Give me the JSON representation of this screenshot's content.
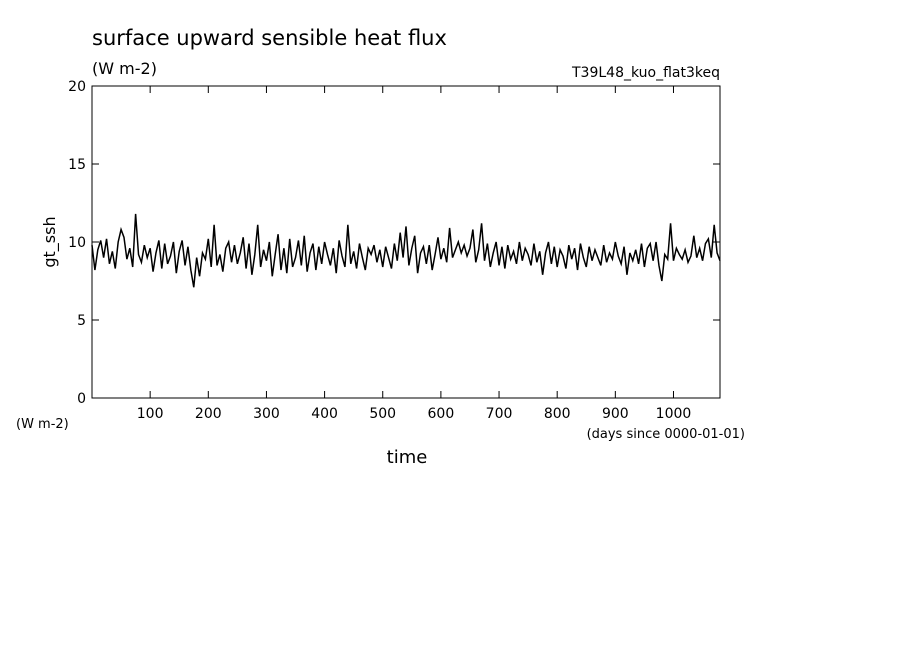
{
  "chart_data": {
    "type": "line",
    "title": "surface upward sensible heat flux",
    "subtitle": "(W m-2)",
    "annotation": "T39L48_kuo_flat3keq",
    "ylabel": "gt_ssh",
    "yunit": "(W m-2)",
    "xlabel": "time",
    "xunit": "(days since 0000-01-01)",
    "color": "#000000",
    "xlim": [
      0,
      1080
    ],
    "ylim": [
      0,
      20
    ],
    "xticks": [
      100,
      200,
      300,
      400,
      500,
      600,
      700,
      800,
      900,
      1000
    ],
    "yticks": [
      0,
      5,
      10,
      15,
      20
    ],
    "x": [
      0,
      5,
      10,
      15,
      20,
      25,
      30,
      35,
      40,
      45,
      50,
      55,
      60,
      65,
      70,
      75,
      80,
      85,
      90,
      95,
      100,
      105,
      110,
      115,
      120,
      125,
      130,
      135,
      140,
      145,
      150,
      155,
      160,
      165,
      170,
      175,
      180,
      185,
      190,
      195,
      200,
      205,
      210,
      215,
      220,
      225,
      230,
      235,
      240,
      245,
      250,
      255,
      260,
      265,
      270,
      275,
      280,
      285,
      290,
      295,
      300,
      305,
      310,
      315,
      320,
      325,
      330,
      335,
      340,
      345,
      350,
      355,
      360,
      365,
      370,
      375,
      380,
      385,
      390,
      395,
      400,
      405,
      410,
      415,
      420,
      425,
      430,
      435,
      440,
      445,
      450,
      455,
      460,
      465,
      470,
      475,
      480,
      485,
      490,
      495,
      500,
      505,
      510,
      515,
      520,
      525,
      530,
      535,
      540,
      545,
      550,
      555,
      560,
      565,
      570,
      575,
      580,
      585,
      590,
      595,
      600,
      605,
      610,
      615,
      620,
      625,
      630,
      635,
      640,
      645,
      650,
      655,
      660,
      665,
      670,
      675,
      680,
      685,
      690,
      695,
      700,
      705,
      710,
      715,
      720,
      725,
      730,
      735,
      740,
      745,
      750,
      755,
      760,
      765,
      770,
      775,
      780,
      785,
      790,
      795,
      800,
      805,
      810,
      815,
      820,
      825,
      830,
      835,
      840,
      845,
      850,
      855,
      860,
      865,
      870,
      875,
      880,
      885,
      890,
      895,
      900,
      905,
      910,
      915,
      920,
      925,
      930,
      935,
      940,
      945,
      950,
      955,
      960,
      965,
      970,
      975,
      980,
      985,
      990,
      995,
      1000,
      1005,
      1010,
      1015,
      1020,
      1025,
      1030,
      1035,
      1040,
      1045,
      1050,
      1055,
      1060,
      1065,
      1070,
      1075,
      1080
    ],
    "values": [
      9.8,
      8.2,
      9.5,
      10.1,
      9.0,
      10.2,
      8.6,
      9.4,
      8.3,
      10.0,
      10.8,
      10.3,
      8.9,
      9.6,
      8.4,
      11.8,
      9.2,
      8.7,
      9.8,
      9.0,
      9.6,
      8.1,
      9.3,
      10.1,
      8.3,
      9.9,
      8.6,
      9.1,
      10.0,
      8.0,
      9.4,
      10.1,
      8.5,
      9.7,
      8.2,
      7.1,
      9.0,
      7.8,
      9.3,
      8.9,
      10.2,
      8.4,
      11.1,
      8.5,
      9.2,
      8.1,
      9.6,
      10.0,
      8.7,
      9.8,
      8.6,
      9.3,
      10.3,
      8.3,
      9.9,
      7.9,
      9.2,
      11.1,
      8.4,
      9.5,
      8.8,
      10.0,
      7.8,
      9.2,
      10.5,
      8.2,
      9.6,
      8.0,
      10.2,
      8.4,
      9.0,
      10.1,
      8.5,
      10.4,
      8.1,
      9.3,
      9.9,
      8.2,
      9.7,
      8.6,
      10.0,
      9.2,
      8.5,
      9.6,
      8.0,
      10.1,
      9.1,
      8.4,
      11.1,
      8.6,
      9.4,
      8.3,
      9.9,
      9.0,
      8.2,
      9.6,
      9.2,
      9.8,
      8.7,
      9.5,
      8.4,
      9.7,
      9.0,
      8.3,
      9.9,
      8.8,
      10.6,
      9.0,
      11.0,
      8.5,
      9.6,
      10.4,
      8.0,
      9.3,
      9.7,
      8.6,
      9.8,
      8.2,
      9.2,
      10.3,
      8.9,
      9.6,
      8.7,
      10.9,
      9.0,
      9.5,
      10.0,
      9.3,
      9.8,
      9.1,
      9.6,
      10.8,
      8.7,
      9.5,
      11.2,
      8.8,
      9.9,
      8.4,
      9.3,
      10.0,
      8.5,
      9.7,
      8.3,
      9.8,
      8.9,
      9.4,
      8.6,
      10.0,
      8.8,
      9.6,
      9.2,
      8.5,
      9.9,
      8.7,
      9.4,
      7.9,
      9.3,
      10.0,
      8.6,
      9.7,
      8.4,
      9.5,
      9.1,
      8.3,
      9.8,
      8.9,
      9.6,
      8.2,
      9.9,
      9.0,
      8.4,
      9.7,
      8.8,
      9.5,
      9.0,
      8.5,
      9.8,
      8.7,
      9.3,
      8.9,
      10.0,
      9.1,
      8.6,
      9.7,
      7.9,
      9.3,
      8.8,
      9.5,
      8.6,
      9.9,
      8.4,
      9.6,
      9.9,
      8.8,
      10.0,
      8.5,
      7.5,
      9.2,
      8.9,
      11.2,
      8.8,
      9.6,
      9.2,
      8.9,
      9.5,
      8.7,
      9.1,
      10.4,
      9.0,
      9.6,
      8.8,
      9.9,
      10.2,
      9.0,
      11.1,
      9.3,
      8.8
    ]
  }
}
